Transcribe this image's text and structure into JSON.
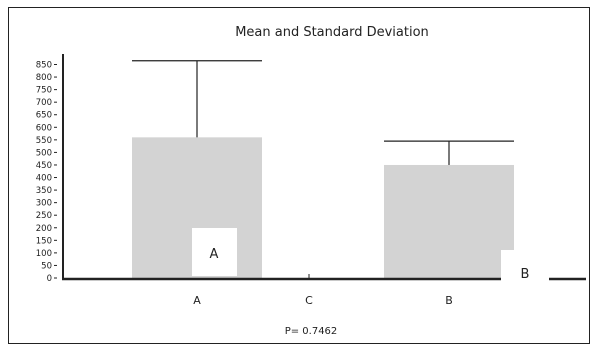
{
  "chart_data": {
    "type": "bar",
    "title": "Mean and Standard Deviation",
    "categories": [
      "A",
      "C",
      "B"
    ],
    "series": [
      {
        "values": [
          560,
          0,
          450
        ],
        "sd": [
          305,
          0,
          95
        ]
      }
    ],
    "y_ticks": [
      0,
      50,
      100,
      150,
      200,
      250,
      300,
      350,
      400,
      450,
      500,
      550,
      600,
      650,
      700,
      750,
      800,
      850
    ],
    "ylim": [
      0,
      850
    ],
    "grid": false,
    "bar_color": "#d3d3d3",
    "bar_labels": [
      "A",
      "B"
    ],
    "footnote": "P= 0.7462"
  }
}
